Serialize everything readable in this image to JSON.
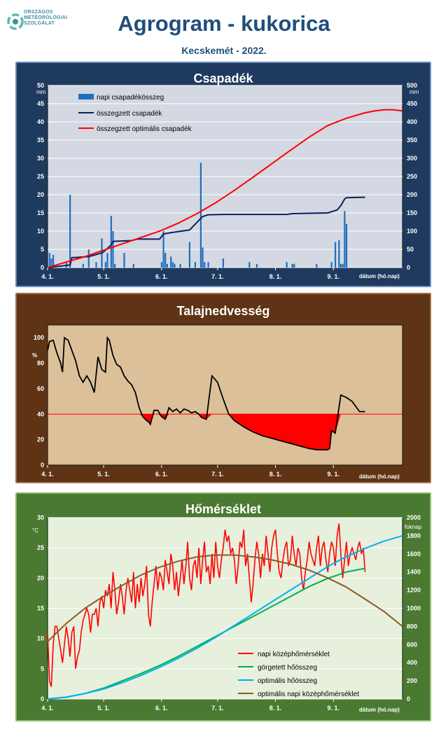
{
  "header": {
    "org_lines": [
      "ORSZÁGOS",
      "METEOROLÓGIAI",
      "SZOLGÁLAT"
    ],
    "title": "Agrogram - kukorica",
    "subtitle": "Kecskemét - 2022.",
    "colors": {
      "title": "#1f4e79",
      "logo": "#3a8fa8"
    }
  },
  "chart_data": [
    {
      "type": "bar+line",
      "title": "Csapadék",
      "xlabel": "dátum (hó.nap)",
      "ylabel_left": "mm",
      "ylabel_right": "mm",
      "x_ticks": [
        "4. 1.",
        "5. 1.",
        "6. 1.",
        "7. 1.",
        "8. 1.",
        "9. 1."
      ],
      "ylim_left": [
        0,
        50
      ],
      "ylim_right": [
        0,
        500
      ],
      "yticks_left": [
        0,
        5,
        10,
        15,
        20,
        25,
        30,
        35,
        40,
        45,
        50
      ],
      "yticks_right": [
        0,
        50,
        100,
        150,
        200,
        250,
        300,
        350,
        400,
        450,
        500
      ],
      "legend": [
        "napi csapadékösszeg",
        "összegzett csapadék",
        "összegzett optimális  csapadék"
      ],
      "bars": {
        "name": "napi csapadékösszeg",
        "color": "#1f6fbf",
        "day": [
          1,
          2,
          3,
          10,
          12,
          19,
          22,
          26,
          29,
          31,
          32,
          34,
          35,
          36,
          41,
          46,
          61,
          62,
          63,
          64,
          66,
          67,
          68,
          71,
          76,
          79,
          82,
          83,
          84,
          86,
          94,
          108,
          112,
          128,
          131,
          132,
          144,
          152,
          154,
          156,
          157,
          158,
          159,
          160
        ],
        "values": [
          4,
          2.5,
          3.5,
          1.5,
          20,
          1,
          5,
          1.5,
          8,
          1.5,
          4,
          14.2,
          10,
          1,
          4,
          1,
          1.5,
          10,
          4,
          1,
          3,
          1.5,
          1,
          1,
          7,
          1.5,
          28.8,
          5.5,
          1.5,
          1.5,
          2.5,
          1.5,
          1,
          1.5,
          1,
          1,
          1,
          1.5,
          7,
          7.5,
          1,
          1,
          15.5,
          12
        ]
      },
      "series": [
        {
          "name": "összegzett csapadék",
          "axis": "right",
          "color": "#0d1f5c",
          "day": [
            0,
            12,
            13,
            22,
            29,
            30,
            34,
            35,
            45,
            48,
            60,
            62,
            66,
            76,
            82,
            83,
            86,
            95,
            110,
            128,
            131,
            150,
            155,
            157,
            159,
            160,
            170
          ],
          "values": [
            0,
            7,
            27,
            30,
            40,
            43,
            62,
            72,
            74,
            78,
            78,
            92,
            96,
            103,
            135,
            140,
            145,
            146,
            146,
            146,
            148,
            150,
            158,
            170,
            188,
            192,
            193
          ]
        },
        {
          "name": "összegzett optimális  csapadék",
          "axis": "right",
          "color": "#ff0000",
          "day": [
            0,
            20,
            40,
            60,
            70,
            80,
            90,
            100,
            110,
            120,
            130,
            140,
            150,
            160,
            170,
            175,
            180,
            185,
            190
          ],
          "values": [
            0,
            30,
            65,
            100,
            122,
            148,
            178,
            212,
            248,
            285,
            322,
            358,
            390,
            410,
            425,
            430,
            433,
            433,
            430
          ]
        }
      ]
    },
    {
      "type": "line",
      "title": "Talajnedvesség",
      "xlabel": "dátum (hó.nap)",
      "ylabel": "%",
      "x_ticks": [
        "4. 1.",
        "5. 1.",
        "6. 1.",
        "7. 1.",
        "8. 1.",
        "9. 1."
      ],
      "ylim": [
        0,
        110
      ],
      "yticks": [
        0,
        20,
        40,
        60,
        80,
        100
      ],
      "threshold": {
        "value": 40,
        "color": "#ff0000"
      },
      "series": [
        {
          "name": "talajnedvesség",
          "color": "#000000",
          "day": [
            0,
            1,
            3,
            5,
            7,
            8,
            9,
            11,
            13,
            15,
            17,
            19,
            21,
            23,
            25,
            27,
            29,
            31,
            32,
            33,
            35,
            37,
            39,
            41,
            43,
            45,
            47,
            49,
            51,
            53,
            54,
            55,
            57,
            59,
            61,
            63,
            65,
            67,
            69,
            71,
            73,
            75,
            77,
            79,
            81,
            82,
            83,
            85,
            88,
            91,
            94,
            97,
            100,
            105,
            110,
            115,
            120,
            125,
            130,
            135,
            140,
            144,
            146,
            147,
            148,
            150,
            151,
            152,
            154,
            157,
            160,
            163,
            165,
            167,
            170
          ],
          "values": [
            90,
            97,
            98,
            88,
            80,
            73,
            100,
            98,
            90,
            82,
            70,
            65,
            70,
            65,
            57,
            85,
            75,
            73,
            100,
            98,
            86,
            79,
            77,
            70,
            66,
            63,
            57,
            45,
            38,
            35,
            34,
            32,
            43,
            43,
            38,
            36,
            45,
            42,
            44,
            41,
            44,
            43,
            41,
            42,
            40,
            38,
            37,
            36,
            70,
            65,
            52,
            40,
            35,
            30,
            26,
            23,
            21,
            19,
            17,
            15,
            13,
            12,
            12,
            12,
            12,
            12,
            13,
            27,
            25,
            55,
            53,
            50,
            46,
            42,
            42
          ]
        }
      ]
    },
    {
      "type": "line",
      "title": "Hőmérséklet",
      "xlabel": "dátum (hó.nap)",
      "ylabel_left": "°C",
      "ylabel_right": "foknap",
      "x_ticks": [
        "4. 1.",
        "5. 1.",
        "6. 1.",
        "7. 1.",
        "8. 1.",
        "9. 1."
      ],
      "ylim_left": [
        0,
        30
      ],
      "ylim_right": [
        0,
        2000
      ],
      "yticks_left": [
        0,
        5,
        10,
        15,
        20,
        25,
        30
      ],
      "yticks_right": [
        0,
        200,
        400,
        600,
        800,
        1000,
        1200,
        1400,
        1600,
        1800,
        2000
      ],
      "legend": [
        "napi középhőmérséklet",
        "görgetett hőösszeg",
        "optimális hőösszeg",
        "optimális napi középhőmérséklet"
      ],
      "series": [
        {
          "name": "napi középhőmérséklet",
          "axis": "left",
          "color": "#ff0000",
          "day": [
            0,
            1,
            2,
            3,
            4,
            5,
            6,
            7,
            8,
            9,
            10,
            11,
            12,
            13,
            14,
            15,
            16,
            17,
            18,
            19,
            20,
            21,
            22,
            23,
            24,
            25,
            26,
            27,
            28,
            29,
            30,
            31,
            32,
            33,
            34,
            35,
            36,
            37,
            38,
            39,
            40,
            41,
            42,
            43,
            44,
            45,
            46,
            47,
            48,
            49,
            50,
            51,
            52,
            53,
            54,
            55,
            56,
            57,
            58,
            59,
            60,
            61,
            62,
            63,
            64,
            65,
            66,
            67,
            68,
            69,
            70,
            71,
            72,
            73,
            74,
            75,
            76,
            77,
            78,
            79,
            80,
            81,
            82,
            83,
            84,
            85,
            86,
            87,
            88,
            89,
            90,
            91,
            92,
            93,
            94,
            95,
            96,
            97,
            98,
            99,
            100,
            101,
            102,
            103,
            104,
            105,
            106,
            107,
            108,
            109,
            110,
            111,
            112,
            113,
            114,
            115,
            116,
            117,
            118,
            119,
            120,
            121,
            122,
            123,
            124,
            125,
            126,
            127,
            128,
            129,
            130,
            131,
            132,
            133,
            134,
            135,
            136,
            137,
            138,
            139,
            140,
            141,
            142,
            143,
            144,
            145,
            146,
            147,
            148,
            149,
            150,
            151,
            152,
            153,
            154,
            155,
            156,
            157,
            158,
            159,
            160,
            161,
            162,
            163,
            164,
            165,
            166,
            167,
            168,
            169,
            170
          ],
          "values": [
            11,
            3,
            2,
            9,
            12,
            12,
            10,
            8,
            6,
            9,
            12,
            10,
            7,
            11,
            12,
            5,
            7,
            8,
            11,
            13,
            14,
            15,
            14,
            11,
            14,
            14,
            15,
            12,
            16,
            17,
            15,
            18,
            17,
            19,
            15,
            21,
            18,
            14,
            16,
            19,
            17,
            14,
            18,
            20,
            18,
            16,
            21,
            15,
            19,
            16,
            20,
            17,
            19,
            22,
            14,
            12,
            16,
            19,
            22,
            18,
            21,
            20,
            18,
            23,
            21,
            19,
            24,
            22,
            18,
            21,
            17,
            20,
            23,
            19,
            22,
            26,
            20,
            18,
            22,
            23,
            20,
            25,
            19,
            23,
            26,
            21,
            22,
            19,
            24,
            20,
            26,
            22,
            20,
            23,
            25,
            28,
            26,
            27,
            24,
            25,
            23,
            19,
            22,
            26,
            25,
            28,
            22,
            24,
            20,
            16,
            19,
            23,
            26,
            24,
            20,
            24,
            22,
            27,
            24,
            21,
            25,
            27,
            28,
            24,
            21,
            20,
            23,
            25,
            26,
            22,
            23,
            27,
            24,
            22,
            25,
            24,
            20,
            18,
            21,
            23,
            26,
            24,
            23,
            22,
            25,
            27,
            22,
            25,
            26,
            23,
            21,
            24,
            26,
            25,
            22,
            27,
            29,
            24,
            20,
            23,
            26,
            22,
            24,
            25,
            24,
            23,
            25,
            26,
            24,
            25,
            21
          ]
        },
        {
          "name": "görgetett hőösszeg",
          "axis": "right",
          "color": "#00b050",
          "day": [
            0,
            10,
            20,
            30,
            40,
            50,
            60,
            70,
            80,
            90,
            100,
            110,
            120,
            130,
            140,
            150,
            160,
            170
          ],
          "values": [
            0,
            20,
            60,
            120,
            200,
            280,
            370,
            470,
            580,
            690,
            800,
            910,
            1020,
            1130,
            1240,
            1330,
            1400,
            1440
          ]
        },
        {
          "name": "optimális hőösszeg",
          "axis": "right",
          "color": "#00b0f0",
          "day": [
            0,
            10,
            20,
            30,
            40,
            50,
            60,
            70,
            80,
            90,
            100,
            110,
            120,
            130,
            140,
            150,
            160,
            170,
            180,
            190
          ],
          "values": [
            0,
            20,
            60,
            110,
            180,
            260,
            350,
            450,
            560,
            680,
            810,
            940,
            1070,
            1200,
            1330,
            1460,
            1570,
            1660,
            1740,
            1800
          ]
        },
        {
          "name": "optimális napi középhőmérséklet",
          "axis": "left",
          "color": "#8b5a2b",
          "day": [
            0,
            10,
            20,
            30,
            40,
            50,
            60,
            70,
            80,
            90,
            100,
            110,
            120,
            130,
            140,
            150,
            160,
            170,
            180,
            190
          ],
          "values": [
            9.5,
            12.5,
            15,
            17,
            18.8,
            20.5,
            21.8,
            22.8,
            23.5,
            23.8,
            23.8,
            23.5,
            23,
            22.3,
            21.3,
            20,
            18.5,
            16.5,
            14.5,
            12
          ]
        }
      ]
    }
  ]
}
